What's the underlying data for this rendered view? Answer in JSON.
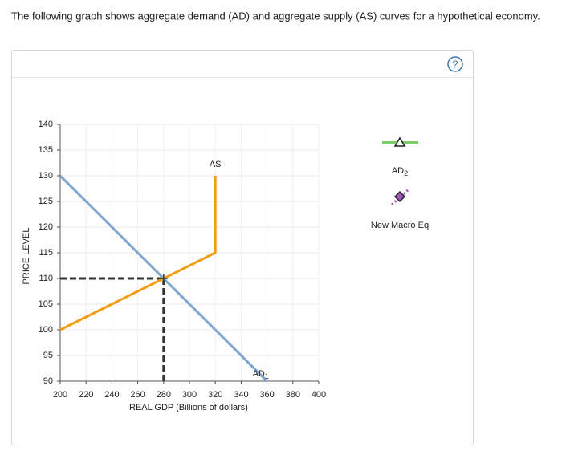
{
  "intro": "The following graph shows aggregate demand (AD) and aggregate supply (AS) curves for a hypothetical economy.",
  "help_icon": "?",
  "chart_data": {
    "type": "line",
    "x_label": "REAL GDP (Billions of dollars)",
    "y_label": "PRICE LEVEL",
    "xlim": [
      200,
      400
    ],
    "xticks": [
      200,
      220,
      240,
      260,
      280,
      300,
      320,
      340,
      360,
      380,
      400
    ],
    "ylim": [
      90,
      140
    ],
    "yticks": [
      90,
      95,
      100,
      105,
      110,
      115,
      120,
      125,
      130,
      135,
      140
    ],
    "grid": true,
    "series": [
      {
        "name": "AS",
        "color": "#f39c12",
        "x": [
          200,
          320,
          320
        ],
        "y": [
          100,
          115,
          130
        ]
      },
      {
        "name": "AD",
        "subscript": "1",
        "color": "#7ea6cf",
        "x": [
          200,
          360
        ],
        "y": [
          130,
          90
        ]
      }
    ],
    "equilibrium": {
      "x": 280,
      "y": 110
    },
    "tools": [
      {
        "name": "AD",
        "subscript": "2",
        "color": "#7dce6b"
      },
      {
        "name": "New Macro Eq",
        "color": "#9b59b6"
      }
    ]
  }
}
